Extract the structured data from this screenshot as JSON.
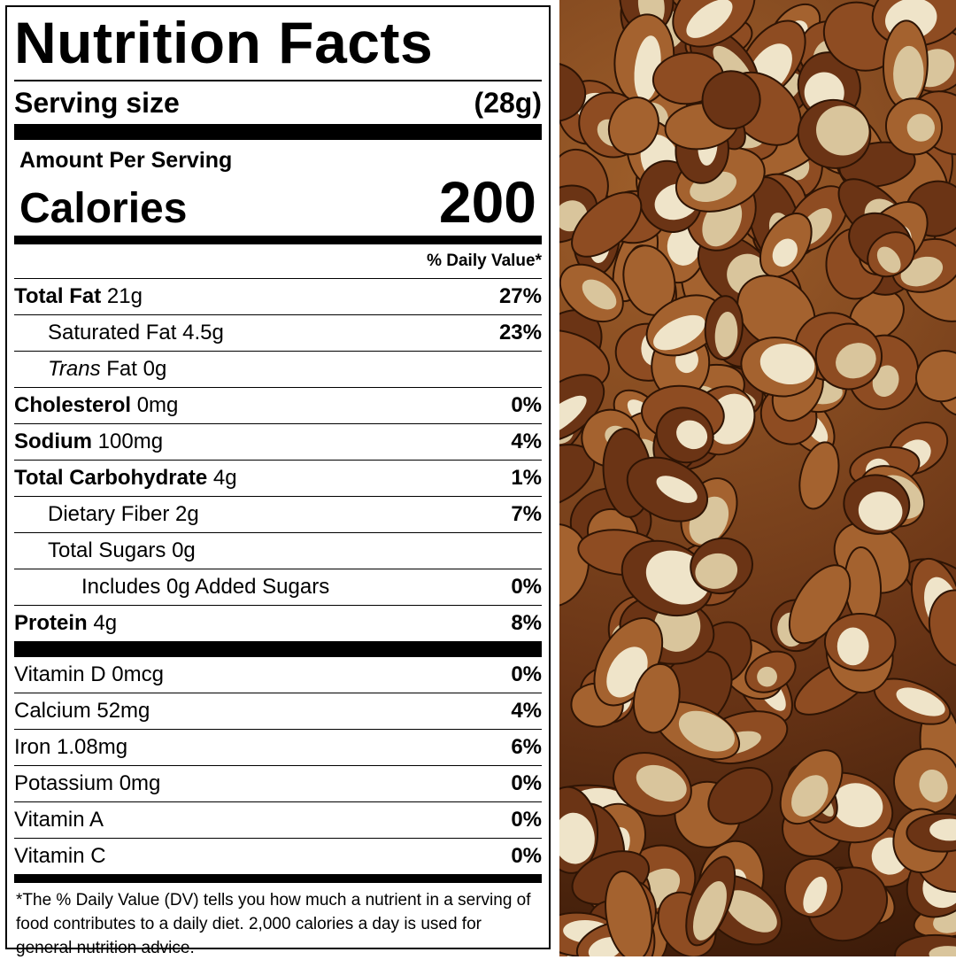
{
  "label": {
    "title": "Nutrition Facts",
    "serving_label": "Serving size",
    "serving_value": "(28g)",
    "amount_per_serving": "Amount Per Serving",
    "calories_label": "Calories",
    "calories_value": "200",
    "dv_header": "% Daily Value*",
    "rows": [
      {
        "name": "Total Fat",
        "amount": "21g",
        "dv": "27%"
      },
      {
        "name": "Saturated Fat",
        "amount": "4.5g",
        "dv": "23%"
      },
      {
        "name": "Trans",
        "suffix": "Fat 0g",
        "dv": ""
      },
      {
        "name": "Cholesterol",
        "amount": "0mg",
        "dv": "0%"
      },
      {
        "name": "Sodium",
        "amount": "100mg",
        "dv": "4%"
      },
      {
        "name": "Total Carbohydrate",
        "amount": "4g",
        "dv": "1%"
      },
      {
        "name": "Dietary Fiber",
        "amount": "2g",
        "dv": "7%"
      },
      {
        "name": "Total Sugars",
        "amount": "0g",
        "dv": ""
      },
      {
        "name": "Includes 0g Added Sugars",
        "amount": "",
        "dv": "0%"
      },
      {
        "name": "Protein",
        "amount": "4g",
        "dv": "8%"
      }
    ],
    "vitamins": [
      {
        "name": "Vitamin D 0mcg",
        "dv": "0%"
      },
      {
        "name": "Calcium 52mg",
        "dv": "4%"
      },
      {
        "name": "Iron 1.08mg",
        "dv": "6%"
      },
      {
        "name": "Potassium 0mg",
        "dv": "0%"
      },
      {
        "name": "Vitamin A",
        "dv": "0%"
      },
      {
        "name": "Vitamin C",
        "dv": "0%"
      }
    ],
    "footnote": "*The % Daily Value (DV) tells you how much a nutrient in a serving of food contributes to a daily diet. 2,000 calories a day is used for general nutrition advice."
  },
  "photo": {
    "colors": {
      "dark_skin": "#6b3415",
      "mid_skin": "#8e4c22",
      "light_skin": "#a4622f",
      "flesh": "#efe4c9",
      "flesh_shade": "#d9c59c"
    }
  }
}
